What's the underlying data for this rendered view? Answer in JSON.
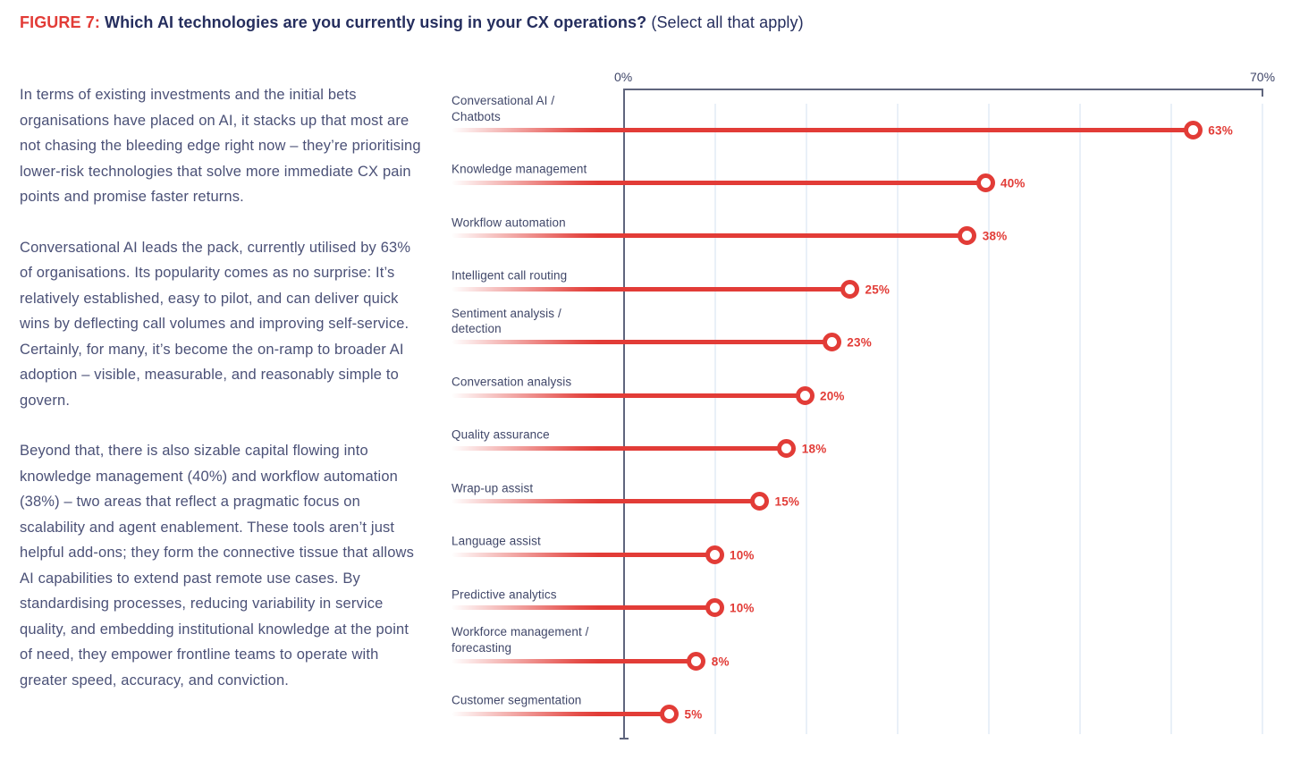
{
  "figure": {
    "label": "FIGURE 7:",
    "title": " Which AI technologies are you currently using in your CX operations? ",
    "subtitle": "(Select all that apply)"
  },
  "body_paragraphs": [
    "In terms of existing investments and the initial bets organisations have placed on AI, it stacks up that most are not chasing the bleeding edge right now – they’re prioritising lower-risk technologies that solve more immediate CX pain points and promise faster returns.",
    "Conversational AI leads the pack, currently utilised by 63% of organisations. Its popularity comes as no surprise: It’s relatively established, easy to pilot, and can deliver quick wins by deflecting call volumes and improving self-service. Certainly, for many, it’s become the on-ramp to broader AI adoption – visible, measurable, and reasonably simple to govern.",
    "Beyond that, there is also sizable capital flowing into knowledge management (40%) and workflow automation (38%) – two areas that reflect a pragmatic focus on scalability and agent enablement. These tools aren’t just helpful add-ons; they form the connective tissue that allows AI capabilities to extend past remote use cases. By standardising processes, reducing variability in service quality, and embedding institutional knowledge at the point of need, they empower frontline teams to operate with greater speed, accuracy, and conviction."
  ],
  "chart_data": {
    "type": "bar",
    "variant": "lollipop",
    "orientation": "horizontal",
    "categories": [
      "Conversational AI / Chatbots",
      "Knowledge management",
      "Workflow automation",
      "Intelligent call routing",
      "Sentiment analysis / detection",
      "Conversation analysis",
      "Quality assurance",
      "Wrap-up assist",
      "Language assist",
      "Predictive analytics",
      "Workforce management / forecasting",
      "Customer segmentation"
    ],
    "label_lines": [
      [
        "Conversational AI /",
        "Chatbots"
      ],
      [
        "Knowledge management"
      ],
      [
        "Workflow automation"
      ],
      [
        "Intelligent call routing"
      ],
      [
        "Sentiment analysis /",
        "detection"
      ],
      [
        "Conversation analysis"
      ],
      [
        "Quality assurance"
      ],
      [
        "Wrap-up assist"
      ],
      [
        "Language assist"
      ],
      [
        "Predictive analytics"
      ],
      [
        "Workforce management /",
        "forecasting"
      ],
      [
        "Customer segmentation"
      ]
    ],
    "values": [
      63,
      40,
      38,
      25,
      23,
      20,
      18,
      15,
      10,
      10,
      8,
      5
    ],
    "value_labels": [
      "63%",
      "40%",
      "38%",
      "25%",
      "23%",
      "20%",
      "18%",
      "15%",
      "10%",
      "10%",
      "8%",
      "5%"
    ],
    "unit": "%",
    "xlabel": "",
    "ylabel": "",
    "axis": {
      "min": 0,
      "max": 70,
      "min_label": "0%",
      "max_label": "70%",
      "gridline_interval": 10
    },
    "grid": true,
    "legend": "none",
    "colors": {
      "accent_red": "#e23c37",
      "title_navy": "#252e5e",
      "body_text": "#4b5177",
      "category_label": "#404769",
      "axis_line": "#5f657d",
      "gridline": "#e9f0f8"
    }
  }
}
